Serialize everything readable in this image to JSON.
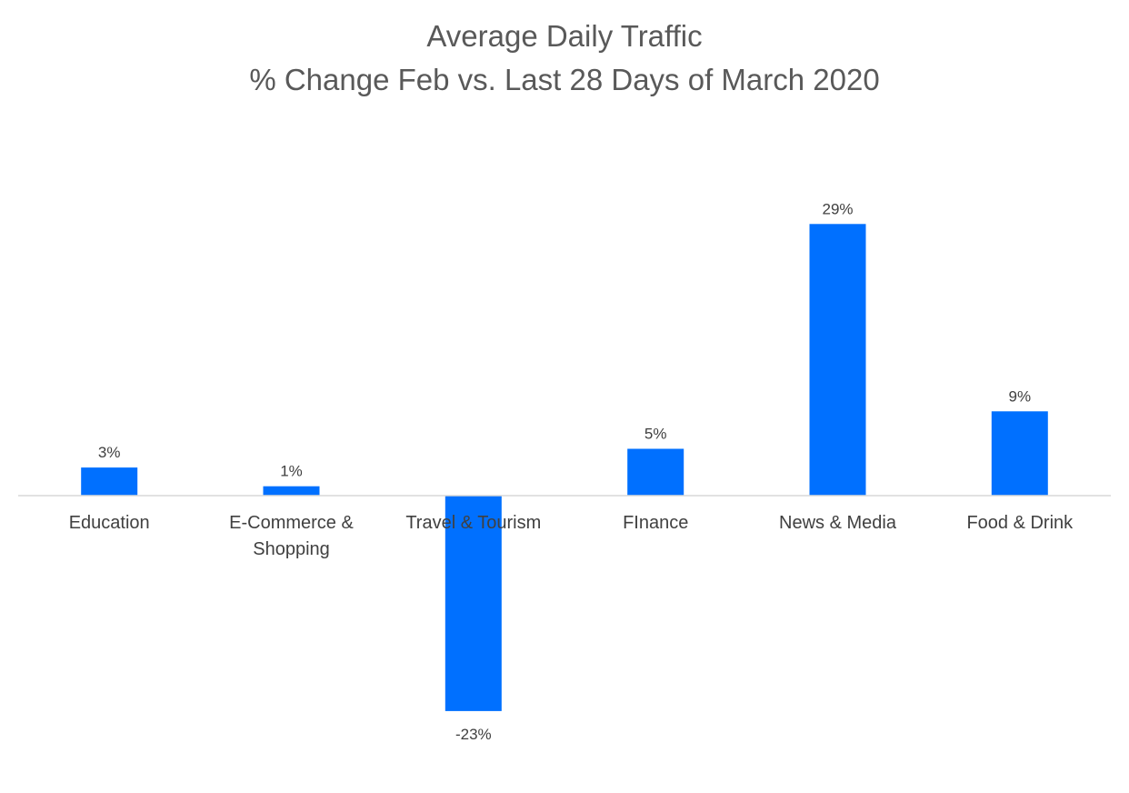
{
  "chart_data": {
    "type": "bar",
    "title": "Average Daily Traffic",
    "subtitle": "% Change Feb vs. Last 28 Days of March 2020",
    "xlabel": "",
    "ylabel": "",
    "categories": [
      [
        "Education"
      ],
      [
        "E-Commerce &",
        "Shopping"
      ],
      [
        "Travel & Tourism"
      ],
      [
        "FInance"
      ],
      [
        "News & Media"
      ],
      [
        "Food & Drink"
      ]
    ],
    "values": [
      3,
      1,
      -23,
      5,
      29,
      9
    ],
    "data_labels": [
      "3%",
      "1%",
      "-23%",
      "5%",
      "29%",
      "9%"
    ],
    "ylim": [
      -26,
      34
    ],
    "grid": false,
    "legend": "none",
    "colors": {
      "bar": "#0070FF",
      "axis": "#D9D9D9",
      "text": "#404040",
      "title": "#595959"
    }
  }
}
